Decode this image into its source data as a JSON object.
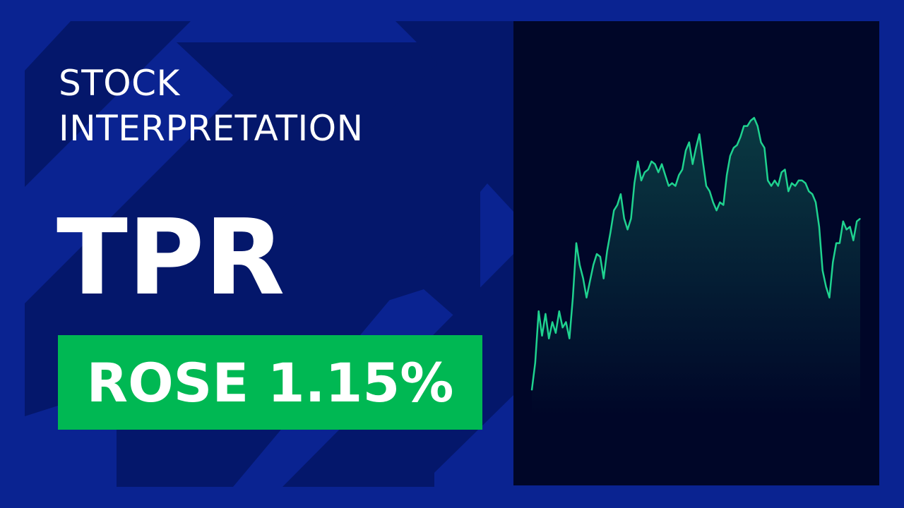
{
  "header": {
    "subtitle_line1": "STOCK",
    "subtitle_line2": "INTERPRETATION",
    "ticker": "TPR",
    "change_label": "ROSE 1.15%"
  },
  "colors": {
    "background": "#0a2391",
    "arrows": "#03145f",
    "badge": "#00b853",
    "panel": "#000628",
    "line": "#1fd28f"
  },
  "chart_data": {
    "type": "area",
    "title": "",
    "xlabel": "",
    "ylabel": "",
    "axes_visible": false,
    "grid": false,
    "values": [
      0,
      10,
      29,
      20,
      28,
      19,
      25,
      21,
      29,
      23,
      25,
      19,
      34,
      54,
      46,
      41,
      34,
      40,
      46,
      50,
      49,
      41,
      51,
      58,
      66,
      68,
      72,
      63,
      59,
      63,
      76,
      84,
      77,
      80,
      81,
      84,
      83,
      80,
      83,
      79,
      75,
      76,
      75,
      79,
      81,
      88,
      91,
      83,
      89,
      94,
      84,
      75,
      73,
      69,
      66,
      69,
      68,
      79,
      86,
      89,
      90,
      93,
      97,
      97,
      99,
      100,
      97,
      91,
      89,
      77,
      75,
      77,
      75,
      80,
      81,
      73,
      76,
      75,
      77,
      77,
      76,
      73,
      72,
      69,
      60,
      44,
      38,
      34,
      47,
      54,
      54,
      62,
      59,
      60,
      55,
      62,
      63
    ]
  }
}
